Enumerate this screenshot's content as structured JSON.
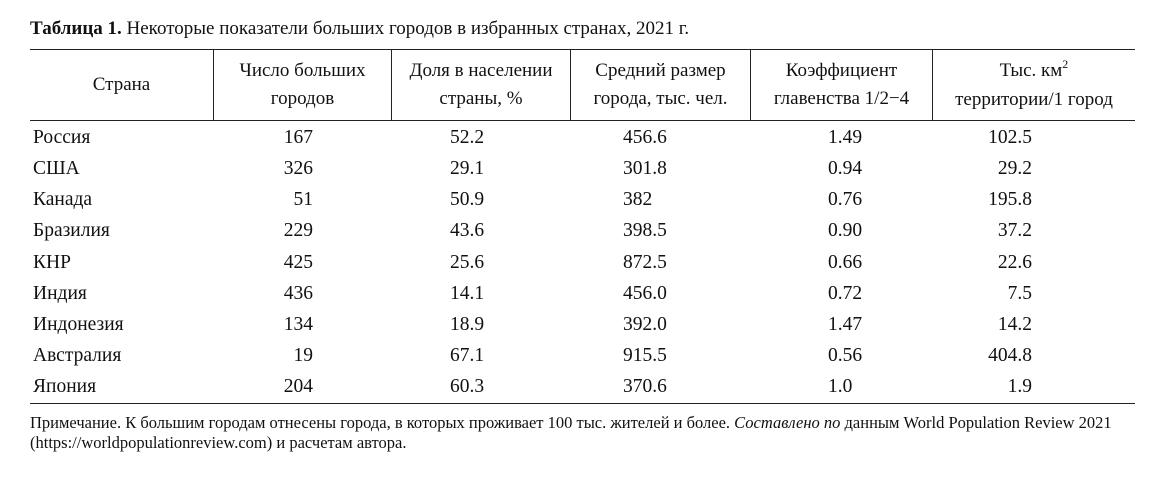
{
  "caption": {
    "label": "Таблица 1.",
    "text": " Некоторые показатели больших городов в избранных странах, 2021 г."
  },
  "headers": {
    "country": "Страна",
    "num_line1": "Число больших",
    "num_line2": "городов",
    "share_line1": "Доля в населении",
    "share_line2": "страны, %",
    "size_line1": "Средний размер",
    "size_line2": "города, тыс. чел.",
    "coef_line1": "Коэффициент",
    "coef_line2": "главенства 1/2−4",
    "terr_line1": "Тыс. км",
    "terr_sup": "2",
    "terr_line2": "территории/1 город"
  },
  "rows": [
    {
      "country": "Россия",
      "num": "167",
      "share": "52.2",
      "size": "456.6",
      "coef": "1.49",
      "terr": "102.5"
    },
    {
      "country": "США",
      "num": "326",
      "share": "29.1",
      "size": "301.8",
      "coef": "0.94",
      "terr": "29.2"
    },
    {
      "country": "Канада",
      "num": "51",
      "share": "50.9",
      "size": "382",
      "coef": "0.76",
      "terr": "195.8"
    },
    {
      "country": "Бразилия",
      "num": "229",
      "share": "43.6",
      "size": "398.5",
      "coef": "0.90",
      "terr": "37.2"
    },
    {
      "country": "КНР",
      "num": "425",
      "share": "25.6",
      "size": "872.5",
      "coef": "0.66",
      "terr": "22.6"
    },
    {
      "country": "Индия",
      "num": "436",
      "share": "14.1",
      "size": "456.0",
      "coef": "0.72",
      "terr": "7.5"
    },
    {
      "country": "Индонезия",
      "num": "134",
      "share": "18.9",
      "size": "392.0",
      "coef": "1.47",
      "terr": "14.2"
    },
    {
      "country": "Австралия",
      "num": "19",
      "share": "67.1",
      "size": "915.5",
      "coef": "0.56",
      "terr": "404.8"
    },
    {
      "country": "Япония",
      "num": "204",
      "share": "60.3",
      "size": "370.6",
      "coef": "1.0",
      "terr": "1.9"
    }
  ],
  "note": {
    "part1": "Примечание. К большим городам отнесены города, в которых проживает 100 тыс. жителей и более. ",
    "part2_italic": "Составлено по",
    "part3": " данным World Population Review 2021 (https://worldpopulationreview.com) и расчетам автора."
  }
}
